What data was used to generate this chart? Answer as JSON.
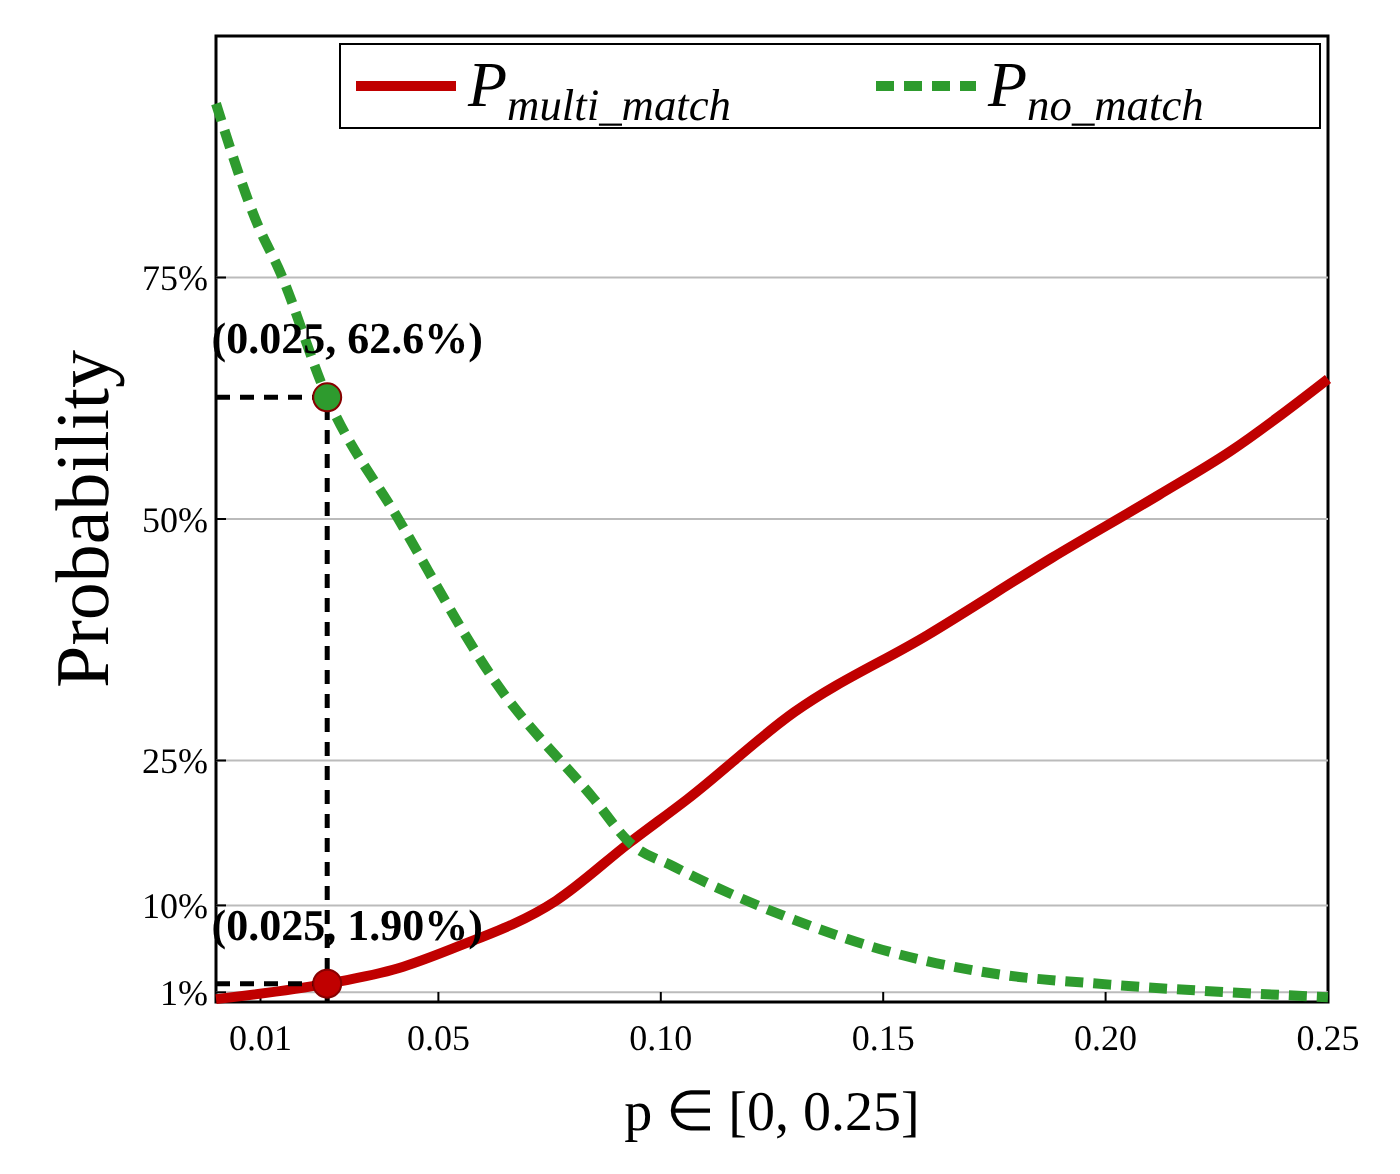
{
  "chart_data": {
    "type": "line",
    "xlabel": "p ∈ [0, 0.25]",
    "ylabel": "Probability",
    "xlim": [
      0,
      0.25
    ],
    "ylim": [
      0,
      100
    ],
    "xticks": [
      0.01,
      0.05,
      {
        "value": 0.1,
        "label": "0.10"
      },
      0.15,
      {
        "value": 0.2,
        "label": "0.20"
      },
      0.25
    ],
    "yticks": [
      {
        "value": 1,
        "label": "1%"
      },
      {
        "value": 10,
        "label": "10%"
      },
      {
        "value": 25,
        "label": "25%"
      },
      {
        "value": 50,
        "label": "50%"
      },
      {
        "value": 75,
        "label": "75%"
      }
    ],
    "grid": "y",
    "legend": "top right",
    "series": [
      {
        "name": "P$_{multi_match}$",
        "color": "#c00000",
        "line_style": "solid",
        "x": [
          0,
          0.025,
          0.041,
          0.053,
          0.0765,
          0.093,
          0.106,
          0.13,
          0.16,
          0.188,
          0.212,
          0.228,
          0.25
        ],
        "values": [
          0.3,
          1.9,
          3.5,
          5.5,
          10.5,
          16.5,
          21,
          30,
          38,
          46,
          52.5,
          57,
          64.5
        ]
      },
      {
        "name": "P$_{no_match}$",
        "color": "#2e9b2e",
        "line_style": "dashed",
        "x": [
          0,
          0.0098,
          0.014,
          0.025,
          0.041,
          0.063,
          0.085,
          0.093,
          0.103,
          0.13,
          0.153,
          0.174,
          0.201,
          0.228,
          0.25
        ],
        "values": [
          93,
          80,
          76,
          62.6,
          50,
          33,
          21,
          16.5,
          14,
          8.5,
          5,
          3,
          1.8,
          1,
          0.5
        ]
      }
    ],
    "annotations": [
      {
        "text": "(0.025, 62.6%)",
        "x": 0.025,
        "y": 62.6
      },
      {
        "text": "(0.025, 1.90%)",
        "x": 0.025,
        "y": 1.9
      }
    ]
  }
}
